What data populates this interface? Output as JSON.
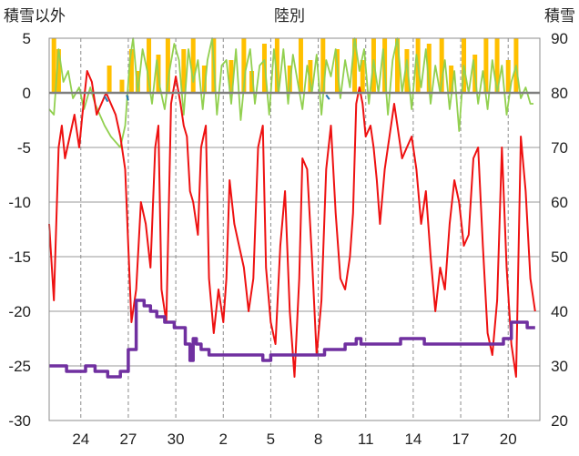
{
  "chart_data": {
    "type": "line",
    "title": "陸別",
    "y_left_label": "積雪以外",
    "y_right_label": "積雪",
    "y_left": {
      "min": -30,
      "max": 5,
      "ticks": [
        5,
        0,
        -5,
        -10,
        -15,
        -20,
        -25,
        -30
      ]
    },
    "y_right": {
      "min": 20,
      "max": 90,
      "ticks": [
        90,
        80,
        70,
        60,
        50,
        40,
        30,
        20
      ]
    },
    "x": {
      "min": 22,
      "max": 53,
      "tick_values": [
        24,
        27,
        30,
        33,
        36,
        39,
        42,
        45,
        48,
        51
      ],
      "tick_labels": [
        "24",
        "27",
        "30",
        "2",
        "5",
        "8",
        "11",
        "14",
        "17",
        "20"
      ]
    },
    "grid": true,
    "series": [
      {
        "key": "precip",
        "type": "bar",
        "axis": "left",
        "color": "#ffc000",
        "bars": [
          [
            22.3,
            5
          ],
          [
            22.6,
            4
          ],
          [
            25.8,
            2.5
          ],
          [
            26.6,
            1.2
          ],
          [
            27.2,
            4
          ],
          [
            27.6,
            2
          ],
          [
            28.3,
            5
          ],
          [
            28.9,
            3.5
          ],
          [
            29.5,
            5
          ],
          [
            30.5,
            4
          ],
          [
            31.1,
            5
          ],
          [
            31.8,
            2.5
          ],
          [
            32.4,
            5
          ],
          [
            33.5,
            3
          ],
          [
            34.3,
            5
          ],
          [
            34.8,
            2
          ],
          [
            35.6,
            4.5
          ],
          [
            36.4,
            5
          ],
          [
            37.2,
            2.5
          ],
          [
            37.9,
            5
          ],
          [
            38.5,
            3
          ],
          [
            39.3,
            5
          ],
          [
            40.2,
            4
          ],
          [
            41.3,
            5
          ],
          [
            41.8,
            3
          ],
          [
            42.5,
            5
          ],
          [
            43.2,
            5
          ],
          [
            44.0,
            5
          ],
          [
            44.6,
            4
          ],
          [
            45.3,
            5
          ],
          [
            46.0,
            4.5
          ],
          [
            46.8,
            5
          ],
          [
            47.4,
            2.5
          ],
          [
            48.2,
            5
          ],
          [
            48.9,
            3.5
          ],
          [
            49.6,
            5
          ],
          [
            50.3,
            5
          ],
          [
            51.0,
            3
          ],
          [
            51.5,
            5
          ]
        ]
      },
      {
        "key": "wind",
        "type": "line",
        "axis": "left",
        "color": "#92d050",
        "points": [
          [
            22,
            -1.5
          ],
          [
            22.3,
            -2
          ],
          [
            22.6,
            4
          ],
          [
            22.9,
            1
          ],
          [
            23.2,
            2
          ],
          [
            23.5,
            -0.5
          ],
          [
            23.9,
            0.5
          ],
          [
            24.2,
            -1.5
          ],
          [
            24.6,
            0.5
          ],
          [
            24.9,
            -1
          ],
          [
            25.2,
            -2
          ],
          [
            25.5,
            -3
          ],
          [
            25.9,
            -4
          ],
          [
            26.2,
            -4.5
          ],
          [
            26.5,
            -5
          ],
          [
            26.8,
            -3
          ],
          [
            27.1,
            3
          ],
          [
            27.3,
            5
          ],
          [
            27.6,
            0
          ],
          [
            27.9,
            4
          ],
          [
            28.2,
            2
          ],
          [
            28.5,
            -1
          ],
          [
            28.8,
            3
          ],
          [
            29.0,
            0.5
          ],
          [
            29.3,
            -1.5
          ],
          [
            29.6,
            2
          ],
          [
            29.9,
            4.5
          ],
          [
            30.2,
            3
          ],
          [
            30.5,
            -2
          ],
          [
            30.8,
            4
          ],
          [
            31.1,
            1
          ],
          [
            31.4,
            3
          ],
          [
            31.7,
            -1.5
          ],
          [
            32.0,
            3
          ],
          [
            32.3,
            5
          ],
          [
            32.6,
            -2
          ],
          [
            32.9,
            2.5
          ],
          [
            33.2,
            3
          ],
          [
            33.5,
            -1
          ],
          [
            33.8,
            4
          ],
          [
            34.1,
            -2.5
          ],
          [
            34.4,
            2
          ],
          [
            34.7,
            4
          ],
          [
            35.0,
            -1
          ],
          [
            35.3,
            2.5
          ],
          [
            35.6,
            3
          ],
          [
            35.9,
            -2
          ],
          [
            36.2,
            4
          ],
          [
            36.5,
            0
          ],
          [
            36.8,
            4
          ],
          [
            37.1,
            -1
          ],
          [
            37.4,
            3.5
          ],
          [
            37.7,
            1
          ],
          [
            38.0,
            -1.5
          ],
          [
            38.3,
            2.5
          ],
          [
            38.6,
            0
          ],
          [
            38.9,
            3.5
          ],
          [
            39.2,
            -2
          ],
          [
            39.5,
            3
          ],
          [
            39.8,
            1.5
          ],
          [
            40.1,
            4
          ],
          [
            40.4,
            -0.5
          ],
          [
            40.7,
            3
          ],
          [
            41.0,
            0.5
          ],
          [
            41.3,
            5
          ],
          [
            41.6,
            2
          ],
          [
            41.9,
            4
          ],
          [
            42.2,
            -1
          ],
          [
            42.5,
            3
          ],
          [
            42.8,
            0
          ],
          [
            43.1,
            4
          ],
          [
            43.4,
            -2
          ],
          [
            43.7,
            3
          ],
          [
            44.0,
            5
          ],
          [
            44.3,
            0
          ],
          [
            44.6,
            3
          ],
          [
            44.9,
            -1.5
          ],
          [
            45.2,
            3.5
          ],
          [
            45.5,
            0.5
          ],
          [
            45.8,
            4
          ],
          [
            46.1,
            -1
          ],
          [
            46.4,
            2.5
          ],
          [
            46.7,
            0
          ],
          [
            47.0,
            3
          ],
          [
            47.3,
            -1.5
          ],
          [
            47.6,
            2
          ],
          [
            47.9,
            -3.5
          ],
          [
            48.2,
            2.5
          ],
          [
            48.5,
            0
          ],
          [
            48.8,
            3
          ],
          [
            49.1,
            -1
          ],
          [
            49.4,
            2
          ],
          [
            49.7,
            -1.5
          ],
          [
            50.0,
            3
          ],
          [
            50.3,
            0
          ],
          [
            50.6,
            2.5
          ],
          [
            50.9,
            -2
          ],
          [
            51.2,
            1
          ],
          [
            51.5,
            2.5
          ],
          [
            51.8,
            -0.5
          ],
          [
            52.1,
            0.5
          ],
          [
            52.4,
            -1
          ],
          [
            52.6,
            -1
          ]
        ]
      },
      {
        "key": "temp",
        "type": "line",
        "axis": "left",
        "color": "#ee1111",
        "points": [
          [
            22,
            -12
          ],
          [
            22.3,
            -19
          ],
          [
            22.6,
            -5
          ],
          [
            22.8,
            -3
          ],
          [
            23.0,
            -6
          ],
          [
            23.3,
            -4
          ],
          [
            23.6,
            -2
          ],
          [
            23.9,
            -5
          ],
          [
            24.1,
            -2
          ],
          [
            24.4,
            2
          ],
          [
            24.7,
            1
          ],
          [
            25.0,
            -2
          ],
          [
            25.3,
            -1
          ],
          [
            25.6,
            0
          ],
          [
            25.9,
            -1
          ],
          [
            26.2,
            -2
          ],
          [
            26.5,
            -4
          ],
          [
            26.8,
            -7
          ],
          [
            27.0,
            -14
          ],
          [
            27.2,
            -21
          ],
          [
            27.5,
            -18
          ],
          [
            27.8,
            -10
          ],
          [
            28.1,
            -12
          ],
          [
            28.4,
            -16
          ],
          [
            28.7,
            -5
          ],
          [
            28.9,
            -3
          ],
          [
            29.1,
            -18
          ],
          [
            29.4,
            -21
          ],
          [
            29.7,
            -1
          ],
          [
            30.0,
            1.5
          ],
          [
            30.3,
            -1
          ],
          [
            30.5,
            -3
          ],
          [
            30.7,
            -4
          ],
          [
            30.9,
            -9
          ],
          [
            31.1,
            -10
          ],
          [
            31.4,
            -13
          ],
          [
            31.6,
            -5
          ],
          [
            31.9,
            -3
          ],
          [
            32.1,
            -17
          ],
          [
            32.4,
            -22
          ],
          [
            32.7,
            -18
          ],
          [
            33.0,
            -21
          ],
          [
            33.2,
            -17
          ],
          [
            33.4,
            -8
          ],
          [
            33.7,
            -12
          ],
          [
            34.0,
            -14
          ],
          [
            34.3,
            -16
          ],
          [
            34.6,
            -20
          ],
          [
            34.9,
            -17
          ],
          [
            35.2,
            -5
          ],
          [
            35.5,
            -3
          ],
          [
            35.7,
            -16
          ],
          [
            36.0,
            -21
          ],
          [
            36.3,
            -23
          ],
          [
            36.6,
            -14
          ],
          [
            36.9,
            -9
          ],
          [
            37.2,
            -20
          ],
          [
            37.5,
            -26
          ],
          [
            37.8,
            -17
          ],
          [
            38.0,
            -6
          ],
          [
            38.3,
            -7
          ],
          [
            38.6,
            -15
          ],
          [
            38.9,
            -24
          ],
          [
            39.2,
            -19
          ],
          [
            39.5,
            -7
          ],
          [
            39.8,
            -3
          ],
          [
            40.1,
            -11
          ],
          [
            40.4,
            -17
          ],
          [
            40.7,
            -18
          ],
          [
            41.0,
            -15
          ],
          [
            41.2,
            -11
          ],
          [
            41.4,
            -1
          ],
          [
            41.6,
            0.5
          ],
          [
            41.8,
            -1
          ],
          [
            42.0,
            -4
          ],
          [
            42.3,
            -3
          ],
          [
            42.5,
            -5
          ],
          [
            42.7,
            -8
          ],
          [
            42.9,
            -12
          ],
          [
            43.2,
            -7
          ],
          [
            43.5,
            -4
          ],
          [
            43.8,
            -1
          ],
          [
            44.0,
            -3
          ],
          [
            44.3,
            -6
          ],
          [
            44.6,
            -5
          ],
          [
            44.9,
            -4
          ],
          [
            45.2,
            -7
          ],
          [
            45.5,
            -12
          ],
          [
            45.8,
            -9
          ],
          [
            46.1,
            -15
          ],
          [
            46.4,
            -20
          ],
          [
            46.7,
            -16
          ],
          [
            47.0,
            -18
          ],
          [
            47.3,
            -12
          ],
          [
            47.6,
            -8
          ],
          [
            47.9,
            -10
          ],
          [
            48.2,
            -14
          ],
          [
            48.5,
            -13
          ],
          [
            48.8,
            -6
          ],
          [
            49.1,
            -5
          ],
          [
            49.4,
            -14
          ],
          [
            49.7,
            -22
          ],
          [
            50.0,
            -24
          ],
          [
            50.3,
            -19
          ],
          [
            50.6,
            -5
          ],
          [
            50.9,
            -16
          ],
          [
            51.2,
            -23
          ],
          [
            51.5,
            -26
          ],
          [
            51.8,
            -4
          ],
          [
            52.1,
            -9
          ],
          [
            52.4,
            -17
          ],
          [
            52.7,
            -20
          ]
        ]
      },
      {
        "key": "sunshine",
        "type": "line",
        "axis": "left",
        "color": "#1f77b4",
        "points": [
          [
            25.5,
            -0.3
          ],
          [
            25.7,
            -0.8
          ],
          [
            26.9,
            -0.2
          ],
          [
            27.0,
            -0.7
          ],
          [
            39.5,
            -0.2
          ],
          [
            39.7,
            -0.6
          ]
        ]
      },
      {
        "key": "snow",
        "type": "step",
        "axis": "right",
        "color": "#7030a0",
        "points": [
          [
            22,
            30
          ],
          [
            23,
            30
          ],
          [
            23.1,
            29
          ],
          [
            24.2,
            29
          ],
          [
            24.3,
            30
          ],
          [
            24.8,
            30
          ],
          [
            24.9,
            29
          ],
          [
            25.6,
            29
          ],
          [
            25.7,
            28
          ],
          [
            26.4,
            28
          ],
          [
            26.5,
            29
          ],
          [
            26.9,
            29
          ],
          [
            27.0,
            33
          ],
          [
            27.4,
            33
          ],
          [
            27.5,
            42
          ],
          [
            27.8,
            42
          ],
          [
            28.0,
            41
          ],
          [
            28.4,
            40
          ],
          [
            28.8,
            39
          ],
          [
            29.3,
            38
          ],
          [
            29.9,
            37
          ],
          [
            30.4,
            37
          ],
          [
            30.6,
            34
          ],
          [
            30.9,
            31
          ],
          [
            31.1,
            35
          ],
          [
            31.3,
            34
          ],
          [
            31.6,
            33
          ],
          [
            32.1,
            32
          ],
          [
            33.0,
            32
          ],
          [
            35.0,
            32
          ],
          [
            35.5,
            31
          ],
          [
            36.0,
            32
          ],
          [
            37.0,
            32
          ],
          [
            38.0,
            32
          ],
          [
            39.0,
            32
          ],
          [
            39.4,
            33
          ],
          [
            40.3,
            33
          ],
          [
            40.7,
            34
          ],
          [
            41.2,
            34
          ],
          [
            41.4,
            35
          ],
          [
            41.6,
            35
          ],
          [
            41.7,
            34
          ],
          [
            44.0,
            34
          ],
          [
            44.2,
            35
          ],
          [
            45.5,
            35
          ],
          [
            45.7,
            34
          ],
          [
            50.5,
            34
          ],
          [
            50.7,
            35
          ],
          [
            51.0,
            35
          ],
          [
            51.2,
            38
          ],
          [
            52.0,
            38
          ],
          [
            52.2,
            37
          ],
          [
            52.7,
            37
          ]
        ]
      }
    ]
  }
}
